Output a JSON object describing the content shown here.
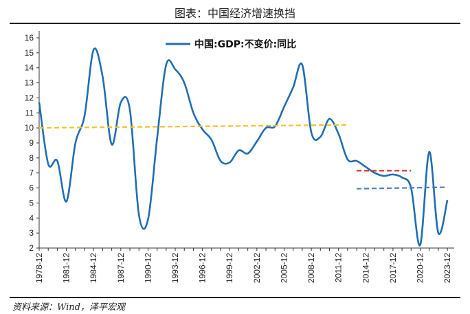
{
  "header": {
    "title": "图表：中国经济增速换挡"
  },
  "footer": {
    "source": "资料来源：Wind，泽平宏观"
  },
  "colors": {
    "gdp": "#1f6db3",
    "trend1": "#f2c12e",
    "trend2": "#d42a2a",
    "trend3": "#4f7fbf"
  },
  "chart_data": {
    "type": "line",
    "title": "",
    "xlabel": "",
    "ylabel": "",
    "ylim": [
      2,
      16
    ],
    "yticks": [
      "2",
      "3",
      "4",
      "5",
      "6",
      "7",
      "8",
      "9",
      "10",
      "11",
      "12",
      "13",
      "14",
      "15",
      "16"
    ],
    "xticks": [
      "1978-12",
      "1981-12",
      "1984-12",
      "1987-12",
      "1990-12",
      "1993-12",
      "1996-12",
      "1999-12",
      "2002-12",
      "2005-12",
      "2008-12",
      "2011-12",
      "2014-12",
      "2017-12",
      "2020-12",
      "2023-12"
    ],
    "legend": {
      "placement": "top-center"
    },
    "series": [
      {
        "name": "中国:GDP:不变价:同比",
        "style": "solid",
        "x": [
          1978,
          1979,
          1980,
          1981,
          1982,
          1983,
          1984,
          1985,
          1986,
          1987,
          1988,
          1989,
          1990,
          1991,
          1992,
          1993,
          1994,
          1995,
          1996,
          1997,
          1998,
          1999,
          2000,
          2001,
          2002,
          2003,
          2004,
          2005,
          2006,
          2007,
          2008,
          2009,
          2010,
          2011,
          2012,
          2013,
          2014,
          2015,
          2016,
          2017,
          2018,
          2019,
          2020,
          2021,
          2022,
          2023
        ],
        "values": [
          11.7,
          7.6,
          7.8,
          5.1,
          9.0,
          10.8,
          15.2,
          13.4,
          8.9,
          11.7,
          11.2,
          4.2,
          3.9,
          9.3,
          14.2,
          13.9,
          13.0,
          11.0,
          9.9,
          9.2,
          7.8,
          7.7,
          8.5,
          8.3,
          9.1,
          10.0,
          10.1,
          11.4,
          12.7,
          14.2,
          9.7,
          9.4,
          10.6,
          9.6,
          7.9,
          7.8,
          7.4,
          7.0,
          6.8,
          6.9,
          6.7,
          6.0,
          2.2,
          8.4,
          3.0,
          5.2
        ]
      },
      {
        "name": "",
        "style": "dashed",
        "color": "#f2c12e",
        "x": [
          1978,
          2012
        ],
        "values": [
          10.0,
          10.2
        ]
      },
      {
        "name": "",
        "style": "dashed",
        "color": "#d42a2a",
        "x": [
          2013,
          2019
        ],
        "values": [
          7.15,
          7.15
        ]
      },
      {
        "name": "",
        "style": "dashed",
        "color": "#4f7fbf",
        "x": [
          2013,
          2023
        ],
        "values": [
          5.95,
          6.05
        ]
      }
    ]
  }
}
